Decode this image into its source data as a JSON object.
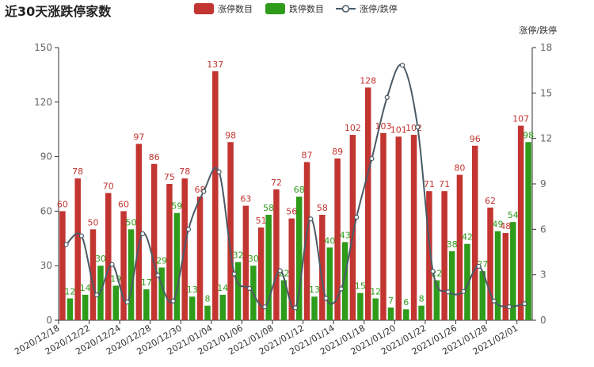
{
  "chart_data": {
    "type": "bar",
    "title": "近30天涨跌停家数",
    "categories": [
      "2020/12/18",
      "2020/12/21",
      "2020/12/22",
      "2020/12/23",
      "2020/12/24",
      "2020/12/25",
      "2020/12/28",
      "2020/12/29",
      "2020/12/30",
      "2020/12/31",
      "2021/01/04",
      "2021/01/05",
      "2021/01/06",
      "2021/01/07",
      "2021/01/08",
      "2021/01/11",
      "2021/01/12",
      "2021/01/13",
      "2021/01/14",
      "2021/01/15",
      "2021/01/18",
      "2021/01/19",
      "2021/01/20",
      "2021/01/21",
      "2021/01/22",
      "2021/01/25",
      "2021/01/26",
      "2021/01/27",
      "2021/01/28",
      "2021/01/29",
      "2021/02/01"
    ],
    "x_tick_labels": [
      "2020/12/18",
      "2020/12/22",
      "2020/12/24",
      "2020/12/28",
      "2020/12/30",
      "2021/01/04",
      "2021/01/06",
      "2021/01/08",
      "2021/01/12",
      "2021/01/14",
      "2021/01/18",
      "2021/01/20",
      "2021/01/22",
      "2021/01/26",
      "2021/01/28",
      "2021/02/01"
    ],
    "x_tick_indices": [
      0,
      2,
      4,
      6,
      8,
      10,
      12,
      14,
      16,
      18,
      20,
      22,
      24,
      26,
      28,
      30
    ],
    "series": [
      {
        "name": "涨停数目",
        "type": "bar",
        "color": "#c23531",
        "values": [
          60,
          78,
          50,
          70,
          60,
          97,
          86,
          75,
          78,
          68,
          137,
          98,
          63,
          51,
          72,
          56,
          87,
          58,
          89,
          102,
          128,
          103,
          101,
          102,
          71,
          71,
          80,
          96,
          62,
          48,
          107
        ]
      },
      {
        "name": "跌停数目",
        "type": "bar",
        "color": "#2f9b1a",
        "values": [
          12,
          14,
          30,
          19,
          50,
          17,
          29,
          59,
          13,
          8,
          14,
          32,
          30,
          58,
          22,
          68,
          13,
          40,
          43,
          15,
          12,
          7,
          6,
          8,
          22,
          38,
          42,
          27,
          49,
          54,
          98
        ]
      },
      {
        "name": "涨停/跌停",
        "type": "line",
        "color": "#4a5a66",
        "axis": "right",
        "values": [
          5.0,
          5.57,
          1.67,
          3.68,
          1.2,
          5.71,
          2.97,
          1.27,
          6.0,
          8.5,
          9.79,
          3.06,
          2.1,
          0.88,
          3.27,
          0.82,
          6.69,
          1.45,
          2.07,
          6.8,
          10.67,
          14.71,
          16.83,
          12.75,
          3.23,
          1.87,
          1.9,
          3.56,
          1.27,
          0.89,
          1.09
        ]
      }
    ],
    "y_left": {
      "range": [
        0,
        150
      ],
      "ticks": [
        "0",
        "30",
        "60",
        "90",
        "120",
        "150"
      ]
    },
    "y_right": {
      "name": "涨停/跌停",
      "range": [
        0,
        18
      ],
      "ticks": [
        "0",
        "3",
        "6",
        "9",
        "12",
        "15",
        "18"
      ]
    },
    "legend_position": "top-center",
    "grid": false
  }
}
